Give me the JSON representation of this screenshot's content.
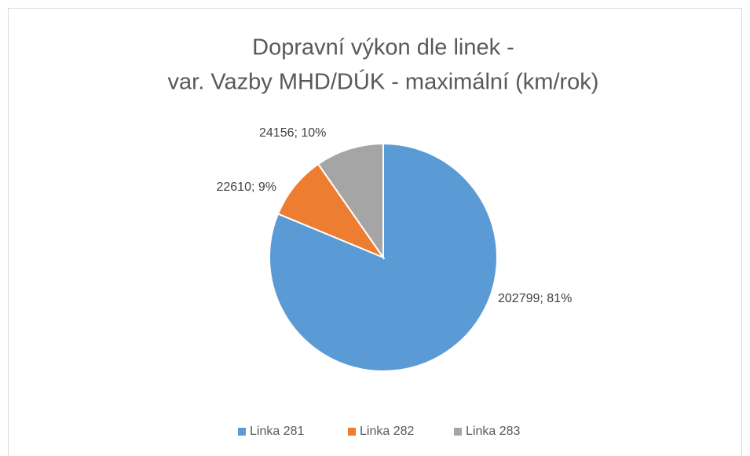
{
  "chart_data": {
    "type": "pie",
    "title": [
      "Dopravní výkon dle linek -",
      "var. Vazby MHD/DÚK - maximální (km/rok)"
    ],
    "categories": [
      "Linka 281",
      "Linka 282",
      "Linka 283"
    ],
    "values": [
      202799,
      22610,
      24156
    ],
    "value_labels": [
      "202799; 81%",
      "22610; 9%",
      "24156; 10%"
    ],
    "colors": [
      "#5b9bd5",
      "#ed7d31",
      "#a5a5a5"
    ],
    "legend": "bottom"
  }
}
